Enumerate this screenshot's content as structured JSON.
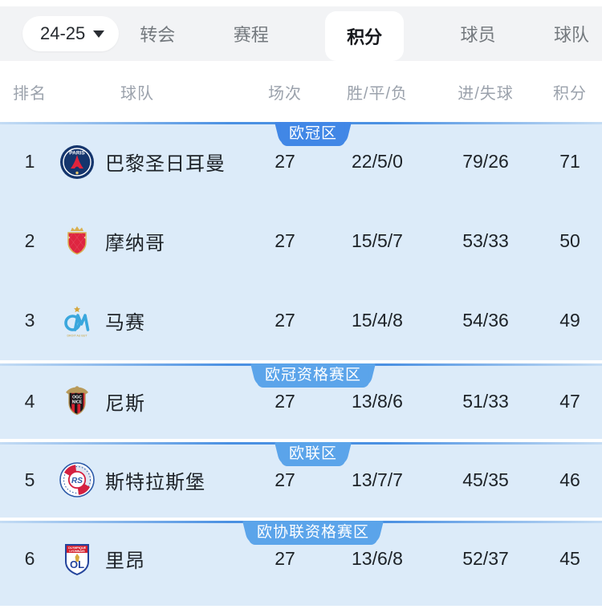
{
  "nav": {
    "season_label": "24-25",
    "dropdown_icon": "caret-down-icon",
    "tabs": [
      {
        "label": "转会",
        "active": false
      },
      {
        "label": "赛程",
        "active": false
      },
      {
        "label": "积分",
        "active": true
      },
      {
        "label": "球员",
        "active": false
      },
      {
        "label": "球队",
        "active": false
      }
    ]
  },
  "table": {
    "headers": [
      "排名",
      "球队",
      "场次",
      "胜/平/负",
      "进/失球",
      "积分"
    ],
    "sections": [
      {
        "zone_label": "欧冠区",
        "badge_color": "#4187e6",
        "rows": [
          {
            "rank": "1",
            "team": "巴黎圣日耳曼",
            "logo": "psg",
            "played": "27",
            "wdl": "22/5/0",
            "goals": "79/26",
            "points": "71"
          },
          {
            "rank": "2",
            "team": "摩纳哥",
            "logo": "monaco",
            "played": "27",
            "wdl": "15/5/7",
            "goals": "53/33",
            "points": "50"
          },
          {
            "rank": "3",
            "team": "马赛",
            "logo": "marseille",
            "played": "27",
            "wdl": "15/4/8",
            "goals": "54/36",
            "points": "49"
          }
        ]
      },
      {
        "zone_label": "欧冠资格赛区",
        "badge_color": "#5ba4ea",
        "rows": [
          {
            "rank": "4",
            "team": "尼斯",
            "logo": "nice",
            "played": "27",
            "wdl": "13/8/6",
            "goals": "51/33",
            "points": "47"
          }
        ]
      },
      {
        "zone_label": "欧联区",
        "badge_color": "#5ba4ea",
        "rows": [
          {
            "rank": "5",
            "team": "斯特拉斯堡",
            "logo": "strasbourg",
            "played": "27",
            "wdl": "13/7/7",
            "goals": "45/35",
            "points": "46"
          }
        ]
      },
      {
        "zone_label": "欧协联资格赛区",
        "badge_color": "#5ba4ea",
        "rows": [
          {
            "rank": "6",
            "team": "里昂",
            "logo": "lyon",
            "played": "27",
            "wdl": "13/6/8",
            "goals": "52/37",
            "points": "45"
          }
        ]
      }
    ]
  },
  "colors": {
    "accent_blue": "#4a90e2",
    "section_bg": "#dcebf9",
    "tabbar_bg": "#f2f3f5",
    "header_text": "#9ba2ac",
    "row_text": "#1d2227",
    "badge_text": "#ffffff"
  }
}
